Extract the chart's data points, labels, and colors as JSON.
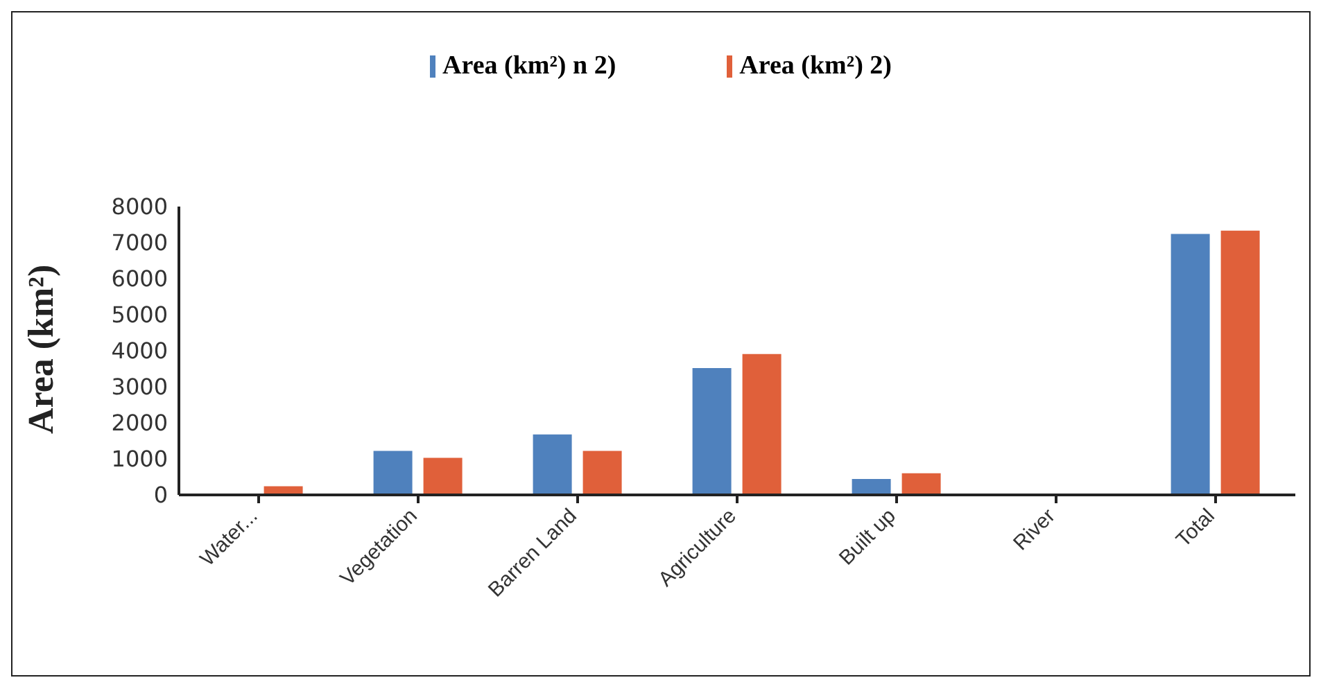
{
  "chart_data": {
    "type": "bar",
    "ylabel": "Area (km²)",
    "categories": [
      "Water...",
      "Vegetation",
      "Barren Land",
      "Agriculture",
      "Built up",
      "River",
      "Total"
    ],
    "series": [
      {
        "name": "Area (km²) n 2)",
        "color": "#4f81bd",
        "values": [
          0,
          1220,
          1680,
          3520,
          440,
          0,
          7240
        ]
      },
      {
        "name": "Area (km²) 2)",
        "color": "#e0603a",
        "values": [
          240,
          1030,
          1220,
          3910,
          600,
          0,
          7330
        ]
      }
    ],
    "ylim": [
      0,
      8000
    ],
    "yticks": [
      0,
      1000,
      2000,
      3000,
      4000,
      5000,
      6000,
      7000,
      8000
    ],
    "grid": false,
    "legend": "top"
  }
}
